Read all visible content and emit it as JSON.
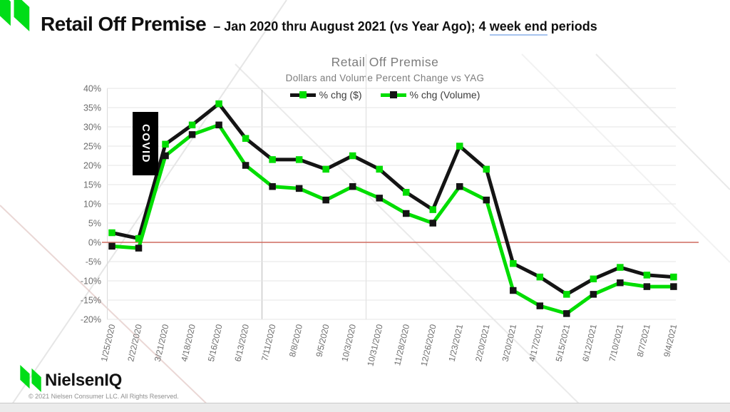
{
  "header": {
    "title": "Retail Off Premise",
    "subtitle_prefix": "– Jan 2020 thru August 2021 (vs Year Ago); 4 ",
    "subtitle_underlined": "week end",
    "subtitle_suffix": " periods"
  },
  "chart_data": {
    "type": "line",
    "title": "Retail Off Premise",
    "subtitle": "Dollars and Volume Percent Change vs YAG",
    "annotation": "COVID",
    "legend_position": "top",
    "grid": true,
    "ylim": [
      -20,
      40
    ],
    "ytick_step": 5,
    "ytick_suffix": "%",
    "zero_line_color": "#cf6a5e",
    "categories": [
      "1/25/2020",
      "2/22/2020",
      "3/21/2020",
      "4/18/2020",
      "5/16/2020",
      "6/13/2020",
      "7/11/2020",
      "8/8/2020",
      "9/5/2020",
      "10/3/2020",
      "10/31/2020",
      "11/28/2020",
      "12/26/2020",
      "1/23/2021",
      "2/20/2021",
      "3/20/2021",
      "4/17/2021",
      "5/15/2021",
      "6/12/2021",
      "7/10/2021",
      "8/7/2021",
      "9/4/2021"
    ],
    "series": [
      {
        "name": "% chg ($)",
        "line_color": "#141414",
        "marker_color": "#00dd00",
        "values": [
          2.5,
          1,
          25.5,
          30.5,
          36,
          27,
          21.5,
          21.5,
          19,
          22.5,
          19,
          13,
          8.5,
          25,
          19,
          -5.5,
          -9,
          -13.5,
          -9.5,
          -6.5,
          -8.5,
          -9
        ]
      },
      {
        "name": "% chg (Volume)",
        "line_color": "#00dd00",
        "marker_color": "#141414",
        "values": [
          -1,
          -1.5,
          22.5,
          28,
          30.5,
          20,
          14.5,
          14,
          11,
          14.5,
          11.5,
          7.5,
          5,
          14.5,
          11,
          -12.5,
          -16.5,
          -18.5,
          -13.5,
          -10.5,
          -11.5,
          -11.5
        ]
      }
    ]
  },
  "footer": {
    "brand": "NielsenIQ",
    "copyright": "© 2021 Nielsen Consumer LLC. All Rights Reserved."
  },
  "colors": {
    "brand_green": "#00dd00",
    "zero_line": "#cf6a5e"
  }
}
